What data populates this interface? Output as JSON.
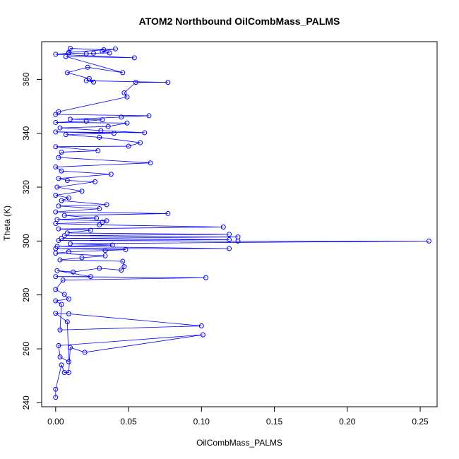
{
  "chart_data": {
    "type": "scatter",
    "title": "ATOM2 Northbound OilCombMass_PALMS",
    "xlabel": "OilCombMass_PALMS",
    "ylabel": "Theta (K)",
    "xlim": [
      -0.0096,
      0.2616
    ],
    "ylim": [
      238.5,
      374
    ],
    "x_ticks": [
      "0.00",
      "0.05",
      "0.10",
      "0.15",
      "0.20",
      "0.25"
    ],
    "y_ticks": [
      "240",
      "260",
      "280",
      "300",
      "320",
      "340",
      "360"
    ],
    "grid": false,
    "marker": "open-circle",
    "connected": true,
    "color": "#0000ff",
    "series": [
      {
        "values": [
          [
            0.0,
            242.0
          ],
          [
            0.0,
            245.0
          ],
          [
            0.004,
            254.0
          ],
          [
            0.006,
            251.2
          ],
          [
            0.009,
            251.2
          ],
          [
            0.01,
            260.5
          ],
          [
            0.02,
            258.7
          ],
          [
            0.101,
            265.2
          ],
          [
            0.002,
            261.2
          ],
          [
            0.003,
            257.0
          ],
          [
            0.009,
            255.2
          ],
          [
            0.008,
            270.0
          ],
          [
            0.0,
            273.2
          ],
          [
            0.009,
            273.0
          ],
          [
            0.1,
            268.5
          ],
          [
            0.003,
            267.0
          ],
          [
            0.004,
            276.5
          ],
          [
            0.0,
            277.8
          ],
          [
            0.009,
            278.5
          ],
          [
            0.006,
            280.2
          ],
          [
            0.0,
            282.0
          ],
          [
            0.005,
            285.5
          ],
          [
            0.103,
            286.4
          ],
          [
            0.0,
            286.8
          ],
          [
            0.024,
            286.8
          ],
          [
            0.001,
            289.0
          ],
          [
            0.012,
            288.5
          ],
          [
            0.03,
            289.9
          ],
          [
            0.045,
            289.2
          ],
          [
            0.047,
            290.5
          ],
          [
            0.046,
            292.5
          ],
          [
            0.003,
            293.0
          ],
          [
            0.018,
            293.8
          ],
          [
            0.034,
            294.5
          ],
          [
            0.0,
            295.5
          ],
          [
            0.009,
            296.0
          ],
          [
            0.034,
            296.5
          ],
          [
            0.048,
            296.8
          ],
          [
            0.0,
            297.2
          ],
          [
            0.119,
            297.2
          ],
          [
            0.001,
            298.0
          ],
          [
            0.039,
            298.5
          ],
          [
            0.01,
            299.0
          ],
          [
            0.256,
            300.0
          ],
          [
            0.125,
            300.0
          ],
          [
            0.002,
            300.2
          ],
          [
            0.119,
            300.5
          ],
          [
            0.004,
            301.0
          ],
          [
            0.125,
            301.5
          ],
          [
            0.006,
            302.0
          ],
          [
            0.119,
            302.5
          ],
          [
            0.008,
            303.0
          ],
          [
            0.024,
            304.0
          ],
          [
            0.002,
            304.5
          ],
          [
            0.115,
            305.2
          ],
          [
            0.03,
            306.0
          ],
          [
            0.0,
            306.5
          ],
          [
            0.032,
            307.0
          ],
          [
            0.035,
            307.5
          ],
          [
            0.001,
            308.0
          ],
          [
            0.028,
            308.5
          ],
          [
            0.006,
            309.5
          ],
          [
            0.077,
            310.2
          ],
          [
            0.0,
            310.8
          ],
          [
            0.03,
            312.0
          ],
          [
            0.002,
            313.0
          ],
          [
            0.035,
            313.5
          ],
          [
            0.004,
            315.0
          ],
          [
            0.009,
            316.0
          ],
          [
            0.0,
            317.0
          ],
          [
            0.018,
            318.5
          ],
          [
            0.001,
            320.0
          ],
          [
            0.027,
            322.0
          ],
          [
            0.008,
            322.5
          ],
          [
            0.002,
            323.2
          ],
          [
            0.038,
            324.8
          ],
          [
            0.004,
            326.0
          ],
          [
            0.0,
            327.5
          ],
          [
            0.065,
            329.0
          ],
          [
            0.002,
            331.0
          ],
          [
            0.004,
            333.0
          ],
          [
            0.029,
            333.5
          ],
          [
            0.0,
            335.0
          ],
          [
            0.05,
            335.2
          ],
          [
            0.058,
            336.5
          ],
          [
            0.03,
            338.5
          ],
          [
            0.007,
            339.5
          ],
          [
            0.04,
            340.0
          ],
          [
            0.0,
            340.5
          ],
          [
            0.061,
            340.2
          ],
          [
            0.031,
            341.0
          ],
          [
            0.003,
            342.0
          ],
          [
            0.036,
            342.5
          ],
          [
            0.049,
            343.8
          ],
          [
            0.0,
            344.0
          ],
          [
            0.021,
            344.5
          ],
          [
            0.032,
            345.0
          ],
          [
            0.01,
            345.2
          ],
          [
            0.045,
            346.0
          ],
          [
            0.064,
            346.5
          ],
          [
            0.0,
            347.0
          ],
          [
            0.002,
            348.0
          ],
          [
            0.049,
            353.5
          ],
          [
            0.047,
            355.0
          ],
          [
            0.055,
            358.9
          ],
          [
            0.077,
            358.9
          ],
          [
            0.021,
            359.5
          ],
          [
            0.026,
            359.0
          ],
          [
            0.023,
            360.3
          ],
          [
            0.008,
            362.5
          ],
          [
            0.022,
            364.5
          ],
          [
            0.046,
            362.5
          ],
          [
            0.007,
            368.5
          ],
          [
            0.054,
            368.0
          ],
          [
            0.0,
            369.3
          ],
          [
            0.009,
            369.8
          ],
          [
            0.021,
            369.5
          ],
          [
            0.026,
            369.7
          ],
          [
            0.037,
            369.8
          ],
          [
            0.032,
            370.5
          ],
          [
            0.041,
            371.3
          ],
          [
            0.009,
            370.0
          ],
          [
            0.01,
            371.5
          ],
          [
            0.033,
            371.0
          ]
        ]
      }
    ]
  }
}
